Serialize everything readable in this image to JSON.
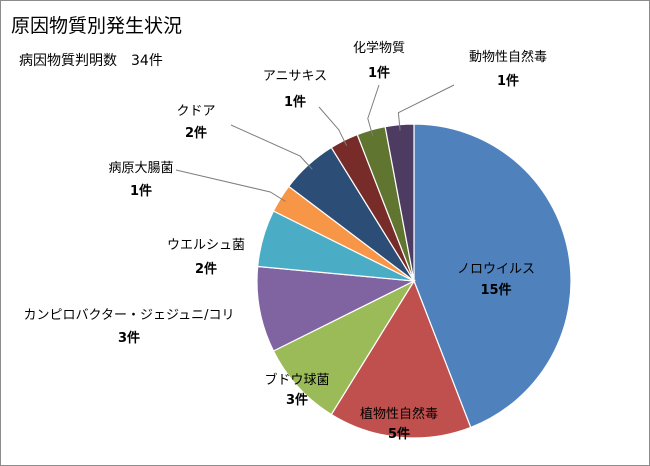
{
  "chart_data": {
    "type": "pie",
    "title": "原因物質別発生状況",
    "subtitle": "病因物質判明数　34件",
    "unit": "件",
    "slices": [
      {
        "name": "ノロウイルス",
        "value": 15,
        "value_label": "15件",
        "color": "#4F81BD"
      },
      {
        "name": "植物性自然毒",
        "value": 5,
        "value_label": "5件",
        "color": "#C0504D"
      },
      {
        "name": "ブドウ球菌",
        "value": 3,
        "value_label": "3件",
        "color": "#9BBB59"
      },
      {
        "name": "カンピロバクター・ジェジュニ/コリ",
        "value": 3,
        "value_label": "3件",
        "color": "#8064A2"
      },
      {
        "name": "ウエルシュ菌",
        "value": 2,
        "value_label": "2件",
        "color": "#4BACC6"
      },
      {
        "name": "病原大腸菌",
        "value": 1,
        "value_label": "1件",
        "color": "#F79646"
      },
      {
        "name": "クドア",
        "value": 2,
        "value_label": "2件",
        "color": "#2C4D75"
      },
      {
        "name": "アニサキス",
        "value": 1,
        "value_label": "1件",
        "color": "#772C2A"
      },
      {
        "name": "化学物質",
        "value": 1,
        "value_label": "1件",
        "color": "#5F7530"
      },
      {
        "name": "動物性自然毒",
        "value": 1,
        "value_label": "1件",
        "color": "#4D3B62"
      }
    ]
  }
}
